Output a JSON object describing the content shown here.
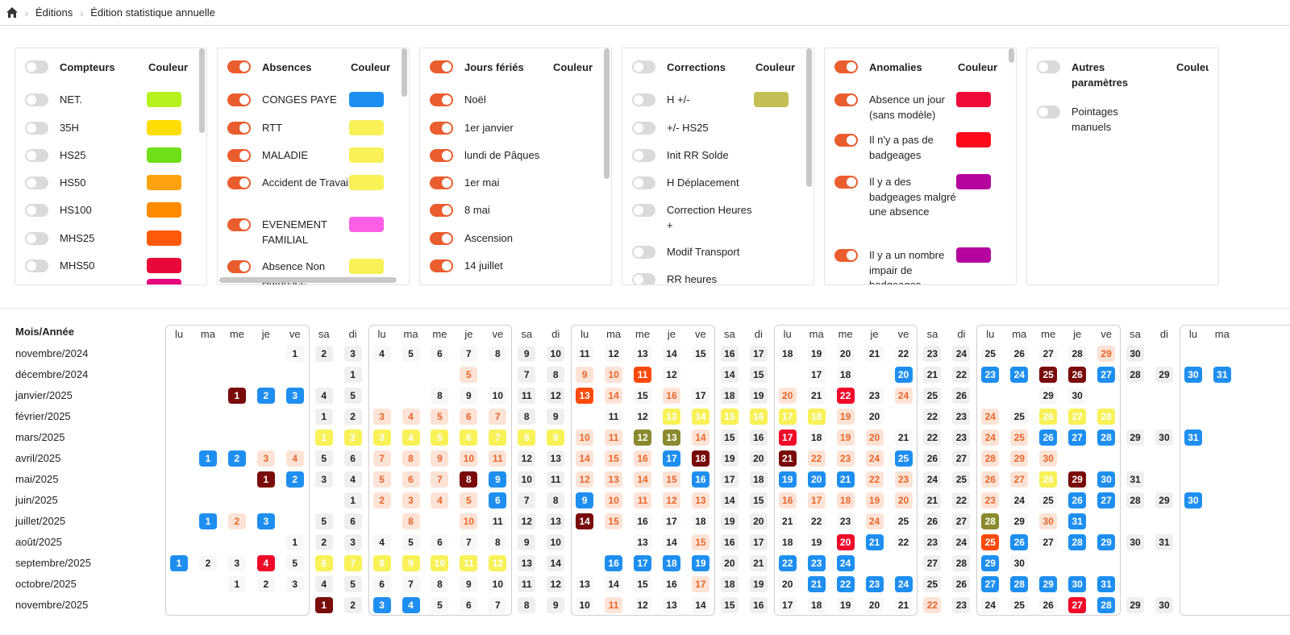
{
  "breadcrumb": {
    "home_icon": "home-icon",
    "items": [
      "Éditions",
      "Édition statistique annuelle"
    ]
  },
  "colors": {
    "toggle_on": "#ea5d2e",
    "toggle_off": "#dadada",
    "weekend_bg": "#f2f2f2",
    "weekday_bg": "#f7f7f7"
  },
  "panels": [
    {
      "title": "Compteurs",
      "color_header": "Couleur",
      "enabled": false,
      "items": [
        {
          "label": "NET.",
          "on": false,
          "color": "#b5f21e"
        },
        {
          "label": "35H",
          "on": false,
          "color": "#ffdd00"
        },
        {
          "label": "HS25",
          "on": false,
          "color": "#6fe018"
        },
        {
          "label": "HS50",
          "on": false,
          "color": "#ffa20d"
        },
        {
          "label": "HS100",
          "on": false,
          "color": "#ff8a00"
        },
        {
          "label": "MHS25",
          "on": false,
          "color": "#ff5a0a"
        },
        {
          "label": "MHS50",
          "on": false,
          "color": "#e8083a"
        }
      ]
    },
    {
      "title": "Absences",
      "color_header": "Couleur",
      "enabled": true,
      "items": [
        {
          "label": "CONGES PAYE",
          "on": true,
          "color": "#1e8ff0"
        },
        {
          "label": "RTT",
          "on": true,
          "color": "#f8f157"
        },
        {
          "label": "MALADIE",
          "on": true,
          "color": "#f8f157"
        },
        {
          "label": "Accident de Travail",
          "on": true,
          "color": "#f8f157"
        },
        {
          "label": "EVENEMENT FAMILIAL",
          "on": true,
          "color": "#ff5ee6"
        },
        {
          "label": "Absence Non Autorisée",
          "on": true,
          "color": "#f8f157"
        }
      ]
    },
    {
      "title": "Jours fériés",
      "color_header": "Couleur",
      "enabled": true,
      "items": [
        {
          "label": "Noël",
          "on": true
        },
        {
          "label": "1er janvier",
          "on": true
        },
        {
          "label": "lundi de Pâques",
          "on": true
        },
        {
          "label": "1er mai",
          "on": true
        },
        {
          "label": "8 mai",
          "on": true
        },
        {
          "label": "Ascension",
          "on": true
        },
        {
          "label": "14 juillet",
          "on": true
        }
      ]
    },
    {
      "title": "Corrections",
      "color_header": "Couleur",
      "enabled": false,
      "items": [
        {
          "label": "H +/-",
          "on": false,
          "color": "#c2bf55"
        },
        {
          "label": "+/- HS25",
          "on": false
        },
        {
          "label": "Init RR Solde",
          "on": false
        },
        {
          "label": "H Déplacement",
          "on": false
        },
        {
          "label": "Correction Heures +",
          "on": false
        },
        {
          "label": "Modif Transport",
          "on": false
        },
        {
          "label": "RR heures",
          "on": false
        }
      ]
    },
    {
      "title": "Anomalies",
      "color_header": "Couleur",
      "enabled": true,
      "items": [
        {
          "label": "Absence un jour (sans modèle)",
          "on": true,
          "color": "#f00a3a"
        },
        {
          "label": "Il n'y a pas de badgeages",
          "on": true,
          "color": "#ff0a1a"
        },
        {
          "label": "Il y a des badgeages malgré une absence",
          "on": true,
          "color": "#b5039e"
        },
        {
          "label": "Il y a un nombre impair de badgeages",
          "on": true,
          "color": "#b5039e"
        }
      ]
    },
    {
      "title": "Autres paramètres",
      "color_header": "Couleur",
      "enabled": false,
      "items": [
        {
          "label": "Pointages manuels",
          "on": false
        }
      ]
    }
  ],
  "calendar": {
    "header": "Mois/Année",
    "weekday_labels": [
      "lu",
      "ma",
      "me",
      "je",
      "ve",
      "sa",
      "di"
    ],
    "palette": {
      "w": [
        "#f7f7f7",
        "#222"
      ],
      "we": [
        "#efefef",
        "#222"
      ],
      "p": [
        "#fde3d6",
        "#e8662c"
      ],
      "b": [
        "#1e8ff0",
        "#fff"
      ],
      "y": [
        "#f8f157",
        "#fff"
      ],
      "dr": [
        "#7a0b0b",
        "#fff"
      ],
      "or": [
        "#ff4a0a",
        "#fff"
      ],
      "r": [
        "#f00a2a",
        "#fff"
      ],
      "ol": [
        "#8a8a2e",
        "#fff"
      ]
    },
    "months": [
      {
        "label": "novembre/2024",
        "start": 4,
        "days": 30,
        "marks": {
          "29": "p"
        }
      },
      {
        "label": "décembre/2024",
        "start": 6,
        "days": 31,
        "marks": {
          "2": "x",
          "3": "x",
          "4": "x",
          "5": "p",
          "6": "x",
          "9": "p",
          "10": "p",
          "11": "or",
          "13": "x",
          "16": "x",
          "19": "x",
          "20": "b",
          "23": "b",
          "24": "b",
          "25": "dr",
          "26": "dr",
          "27": "b",
          "30": "b",
          "31": "b"
        }
      },
      {
        "label": "janvier/2025",
        "start": 2,
        "days": 31,
        "marks": {
          "1": "dr",
          "2": "b",
          "3": "b",
          "6": "x",
          "7": "x",
          "13": "or",
          "14": "p",
          "16": "p",
          "20": "p",
          "22": "r",
          "24": "p",
          "27": "x",
          "28": "x",
          "31": "x"
        }
      },
      {
        "label": "février/2025",
        "start": 5,
        "days": 28,
        "marks": {
          "3": "p",
          "4": "p",
          "5": "p",
          "6": "p",
          "7": "p",
          "10": "x",
          "13": "y",
          "14": "y",
          "15": "y",
          "16": "y",
          "17": "y",
          "18": "y",
          "19": "p",
          "21": "x",
          "24": "p",
          "26": "y",
          "27": "y",
          "28": "y"
        }
      },
      {
        "label": "mars/2025",
        "start": 5,
        "days": 31,
        "marks": {
          "1": "y",
          "2": "y",
          "3": "y",
          "4": "y",
          "5": "y",
          "6": "y",
          "7": "y",
          "8": "y",
          "9": "y",
          "10": "p",
          "11": "p",
          "12": "ol",
          "13": "ol",
          "14": "p",
          "17": "r",
          "19": "p",
          "20": "p",
          "24": "p",
          "25": "p",
          "26": "b",
          "27": "b",
          "28": "b",
          "31": "b"
        }
      },
      {
        "label": "avril/2025",
        "start": 1,
        "days": 30,
        "marks": {
          "1": "b",
          "2": "b",
          "3": "p",
          "4": "p",
          "7": "p",
          "8": "p",
          "9": "p",
          "10": "p",
          "11": "p",
          "14": "p",
          "15": "p",
          "16": "p",
          "17": "b",
          "18": "dr",
          "21": "dr",
          "22": "p",
          "23": "p",
          "24": "p",
          "25": "b",
          "28": "p",
          "29": "p",
          "30": "p"
        }
      },
      {
        "label": "mai/2025",
        "start": 3,
        "days": 31,
        "marks": {
          "1": "dr",
          "2": "b",
          "5": "p",
          "6": "p",
          "7": "p",
          "8": "dr",
          "9": "b",
          "12": "p",
          "13": "p",
          "14": "p",
          "15": "p",
          "16": "b",
          "19": "b",
          "20": "b",
          "21": "b",
          "22": "p",
          "23": "p",
          "26": "p",
          "27": "p",
          "28": "y",
          "29": "dr",
          "30": "b"
        }
      },
      {
        "label": "juin/2025",
        "start": 6,
        "days": 30,
        "marks": {
          "2": "p",
          "3": "p",
          "4": "p",
          "5": "p",
          "6": "b",
          "9": "b",
          "10": "p",
          "11": "p",
          "12": "p",
          "13": "p",
          "16": "p",
          "17": "p",
          "18": "p",
          "19": "p",
          "20": "p",
          "23": "p",
          "26": "b",
          "27": "b",
          "30": "b"
        }
      },
      {
        "label": "juillet/2025",
        "start": 1,
        "days": 31,
        "marks": {
          "1": "b",
          "2": "p",
          "3": "b",
          "4": "x",
          "7": "x",
          "8": "p",
          "9": "x",
          "10": "p",
          "14": "dr",
          "15": "p",
          "24": "p",
          "28": "ol",
          "30": "p",
          "31": "b"
        }
      },
      {
        "label": "août/2025",
        "start": 4,
        "days": 31,
        "marks": {
          "11": "x",
          "12": "x",
          "15": "p",
          "20": "r",
          "21": "b",
          "25": "or",
          "26": "b",
          "28": "b",
          "29": "b"
        }
      },
      {
        "label": "septembre/2025",
        "start": 0,
        "days": 30,
        "marks": {
          "1": "b",
          "4": "r",
          "6": "y",
          "7": "y",
          "8": "y",
          "9": "y",
          "10": "y",
          "11": "y",
          "12": "y",
          "15": "x",
          "16": "b",
          "17": "b",
          "18": "b",
          "19": "b",
          "22": "b",
          "23": "b",
          "24": "b",
          "25": "x",
          "26": "x",
          "29": "b"
        }
      },
      {
        "label": "octobre/2025",
        "start": 2,
        "days": 31,
        "marks": {
          "17": "p",
          "21": "b",
          "22": "b",
          "23": "b",
          "24": "b",
          "27": "b",
          "28": "b",
          "29": "b",
          "30": "b",
          "31": "b"
        }
      },
      {
        "label": "novembre/2025",
        "start": 5,
        "days": 30,
        "marks": {
          "1": "dr",
          "3": "b",
          "4": "b",
          "11": "p",
          "22": "p",
          "27": "r",
          "28": "b"
        }
      }
    ]
  }
}
